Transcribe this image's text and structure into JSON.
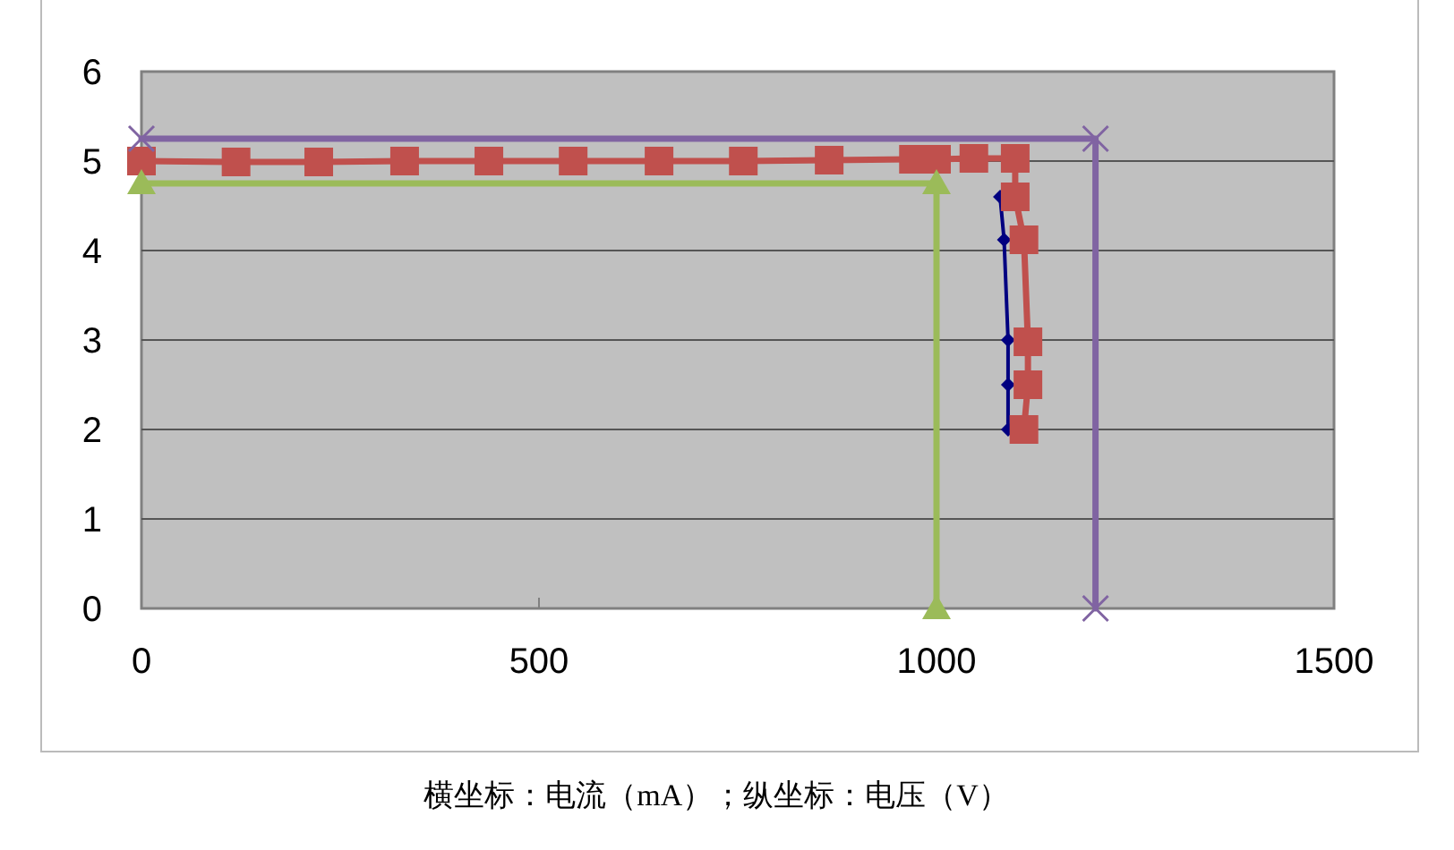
{
  "chart_data": {
    "type": "line",
    "xlim": [
      0,
      1500
    ],
    "xticks": [
      0,
      500,
      1000,
      1500
    ],
    "ylim": [
      0,
      6
    ],
    "yticks": [
      0,
      1,
      2,
      3,
      4,
      5,
      6
    ],
    "grid": "y",
    "line_style": "solid",
    "series": [
      {
        "color": "#000080",
        "marker": "diamond",
        "x": [
          1080,
          1085,
          1090,
          1090,
          1090
        ],
        "values": [
          4.6,
          4.12,
          3.0,
          2.5,
          2.0
        ]
      },
      {
        "color": "#c0504d",
        "marker": "square",
        "x": [
          0,
          119,
          223,
          331,
          437,
          543,
          651,
          757,
          865,
          971,
          1000,
          1047,
          1099,
          1099,
          1110,
          1115,
          1115,
          1110
        ],
        "values": [
          5.0,
          4.99,
          4.99,
          5.0,
          5.0,
          5.0,
          5.0,
          5.0,
          5.01,
          5.02,
          5.02,
          5.03,
          5.03,
          4.6,
          4.12,
          2.98,
          2.5,
          2.0
        ]
      },
      {
        "color": "#8064a2",
        "marker": "cross",
        "x": [
          0,
          1200,
          1200
        ],
        "values": [
          5.25,
          5.25,
          0
        ]
      },
      {
        "color": "#9bbb59",
        "marker": "triangle",
        "x": [
          0,
          1000,
          1000
        ],
        "values": [
          4.75,
          4.75,
          0
        ]
      }
    ],
    "annotations": [
      "横坐标：电流（mA）；纵坐标：电压（V）"
    ]
  }
}
